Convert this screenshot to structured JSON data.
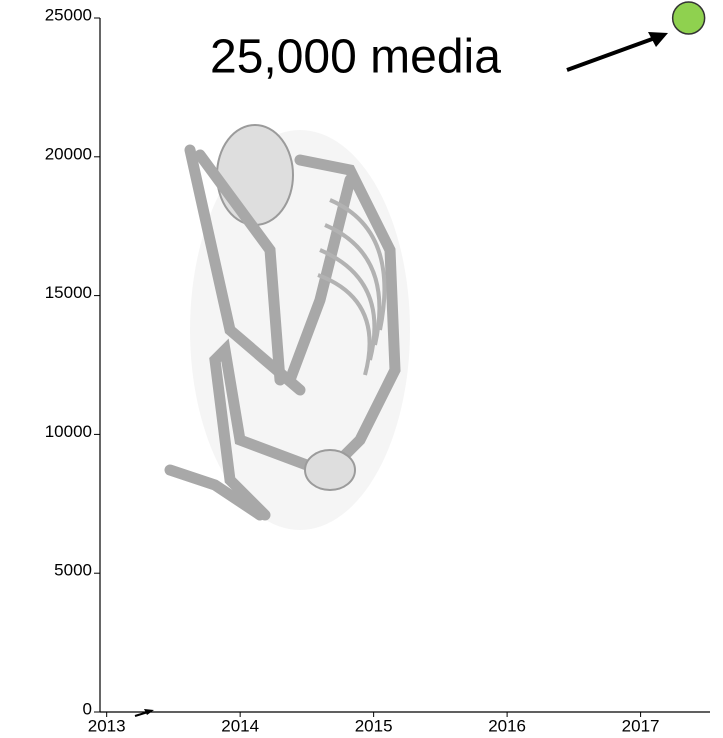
{
  "chart_data": {
    "type": "scatter",
    "annotation": "25,000 media",
    "series": [
      {
        "color": "#8fd14f",
        "x": [
          2017.36
        ],
        "values": [
          25000
        ]
      }
    ],
    "xlim": [
      2012.95,
      2017.52
    ],
    "xticks": [
      2013,
      2014,
      2015,
      2016,
      2017
    ],
    "ylim": [
      0,
      25000
    ],
    "yticks": [
      0,
      5000,
      10000,
      15000,
      20000,
      25000
    ]
  }
}
